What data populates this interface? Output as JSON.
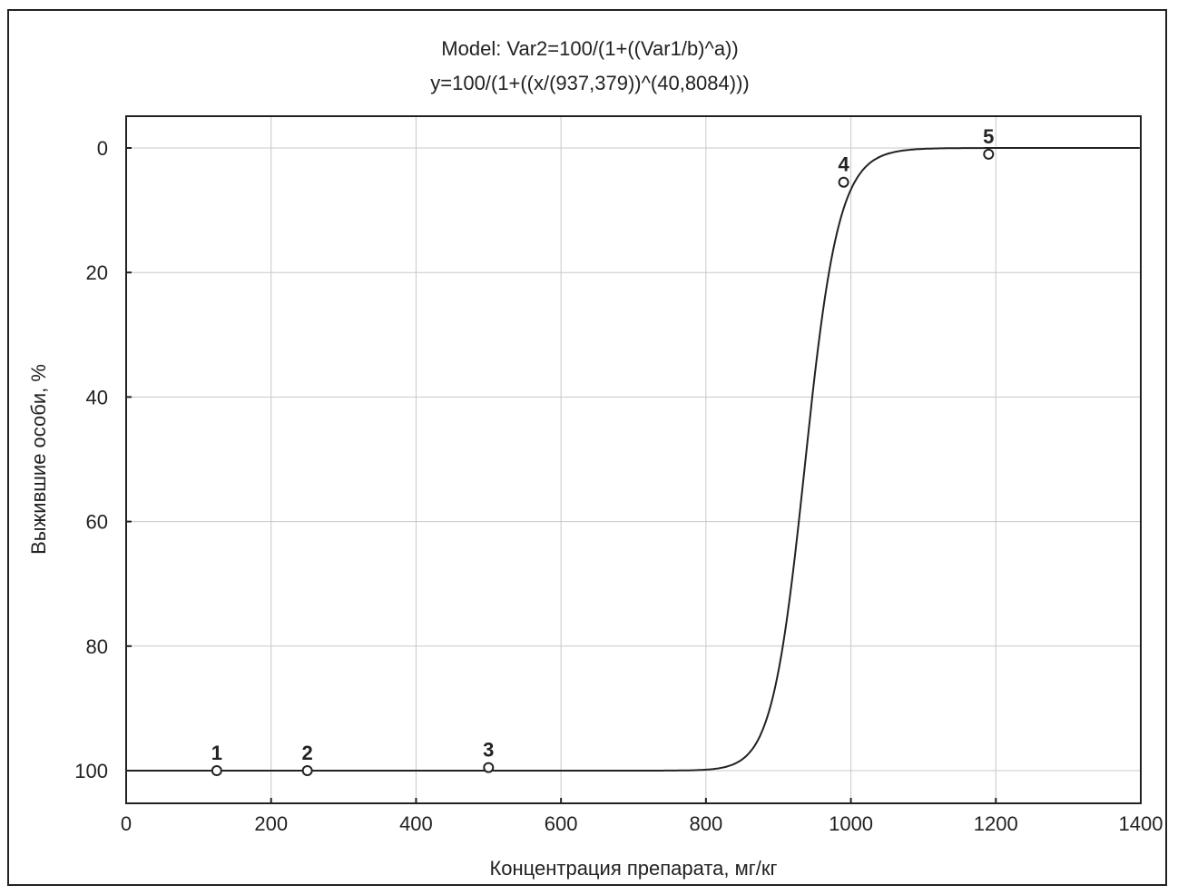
{
  "chart_data": {
    "type": "scatter",
    "title": "Model: Var2=100/(1+((Var1/b)^a))",
    "subtitle": "y=100/(1+((x/(937,379))^(40,8084)))",
    "xlabel": "Концентрация препарата, мг/кг",
    "ylabel": "Выжившие особи, %",
    "xlim": [
      0,
      1400
    ],
    "ylim": [
      0,
      100
    ],
    "y_axis_inverted": true,
    "grid": true,
    "x_ticks": [
      "0",
      "200",
      "400",
      "600",
      "800",
      "1000",
      "1200",
      "1400"
    ],
    "y_ticks": [
      "0",
      "20",
      "40",
      "60",
      "80",
      "100"
    ],
    "model": {
      "b": 937.379,
      "a": 40.8084
    },
    "points": [
      {
        "label": "1",
        "x": 125,
        "y": 100
      },
      {
        "label": "2",
        "x": 250,
        "y": 100
      },
      {
        "label": "3",
        "x": 500,
        "y": 99.5
      },
      {
        "label": "4",
        "x": 990,
        "y": 5.5
      },
      {
        "label": "5",
        "x": 1190,
        "y": 1
      }
    ]
  }
}
